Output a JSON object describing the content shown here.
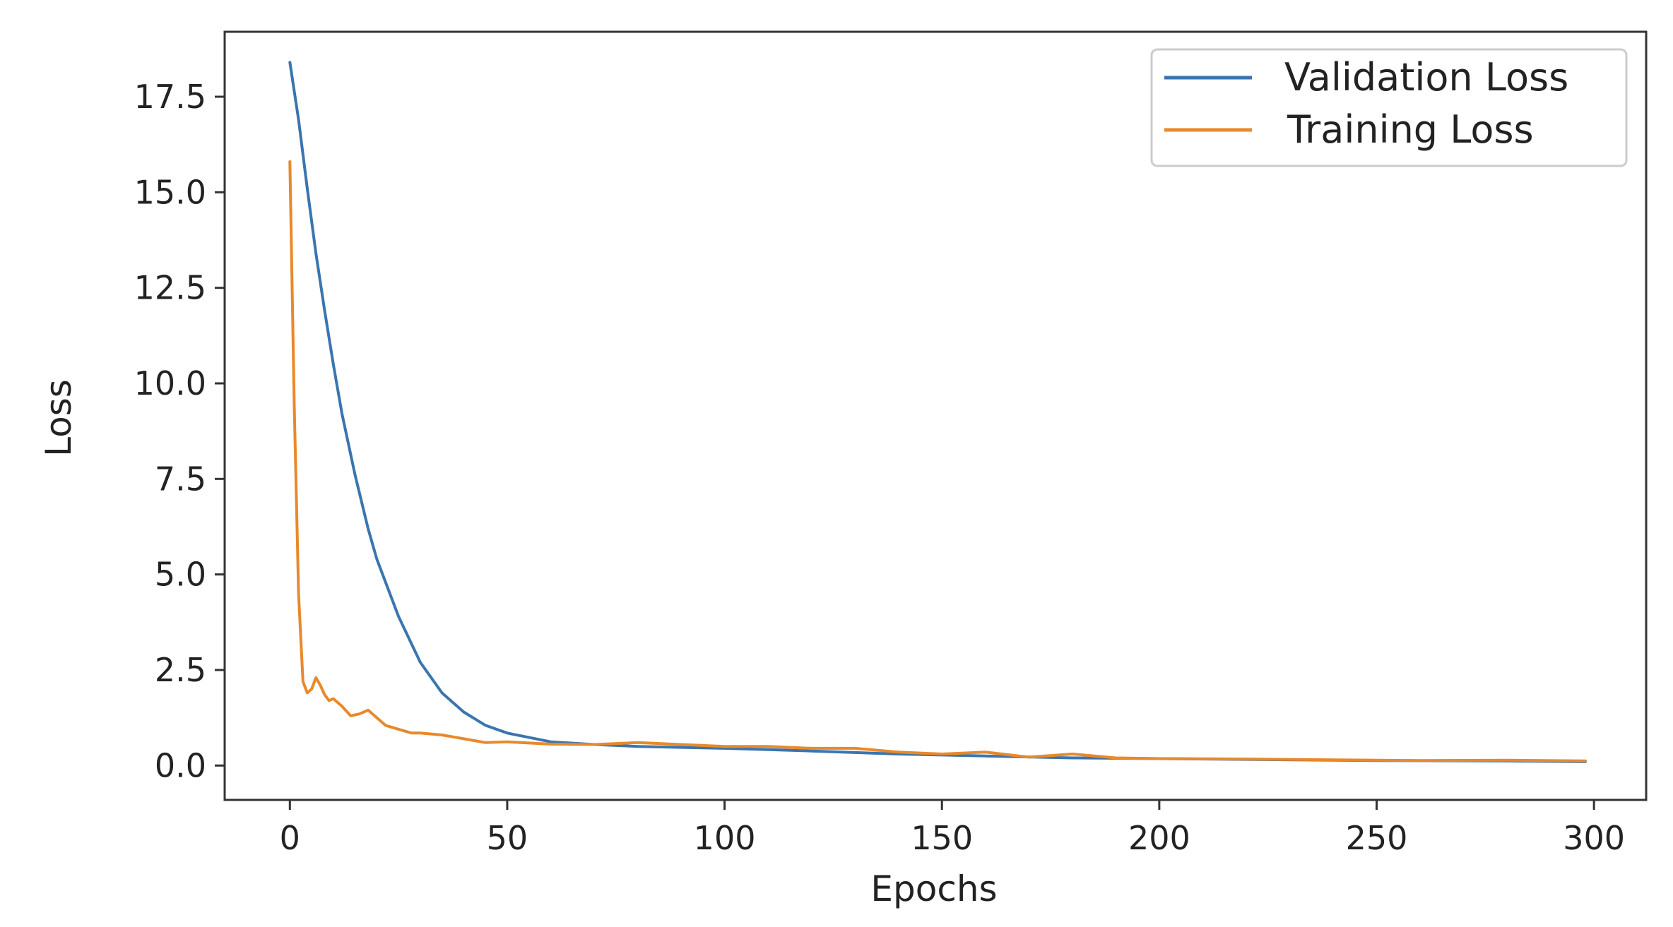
{
  "chart_data": {
    "type": "line",
    "title": "",
    "xlabel": "Epochs",
    "ylabel": "Loss",
    "xlim": [
      -15,
      312
    ],
    "ylim": [
      -0.9,
      19.2
    ],
    "xticks": [
      "0",
      "50",
      "100",
      "150",
      "200",
      "250",
      "300"
    ],
    "yticks": [
      "0.0",
      "2.5",
      "5.0",
      "7.5",
      "10.0",
      "12.5",
      "15.0",
      "17.5"
    ],
    "grid": false,
    "legend_position": "top-right",
    "series": [
      {
        "name": "Validation Loss",
        "color": "#3a75ae",
        "x": [
          0,
          2,
          4,
          6,
          8,
          10,
          12,
          15,
          18,
          20,
          25,
          30,
          35,
          40,
          45,
          50,
          60,
          70,
          80,
          100,
          120,
          140,
          160,
          180,
          200,
          220,
          250,
          280,
          298
        ],
        "y": [
          18.4,
          16.9,
          15.1,
          13.4,
          11.9,
          10.5,
          9.2,
          7.6,
          6.2,
          5.4,
          3.9,
          2.7,
          1.9,
          1.4,
          1.05,
          0.85,
          0.62,
          0.55,
          0.5,
          0.45,
          0.38,
          0.3,
          0.25,
          0.2,
          0.18,
          0.16,
          0.13,
          0.12,
          0.1
        ]
      },
      {
        "name": "Training Loss",
        "color": "#e8892b",
        "x": [
          0,
          1,
          2,
          3,
          4,
          5,
          6,
          7,
          8,
          9,
          10,
          12,
          14,
          16,
          18,
          20,
          22,
          25,
          28,
          30,
          35,
          40,
          45,
          50,
          60,
          70,
          80,
          90,
          100,
          110,
          120,
          130,
          140,
          150,
          160,
          170,
          180,
          190,
          200,
          220,
          240,
          260,
          280,
          298
        ],
        "y": [
          15.8,
          9.5,
          4.5,
          2.2,
          1.9,
          2.0,
          2.3,
          2.1,
          1.85,
          1.7,
          1.75,
          1.55,
          1.3,
          1.35,
          1.45,
          1.25,
          1.05,
          0.95,
          0.85,
          0.85,
          0.8,
          0.7,
          0.6,
          0.62,
          0.56,
          0.55,
          0.6,
          0.55,
          0.5,
          0.5,
          0.45,
          0.45,
          0.35,
          0.3,
          0.35,
          0.22,
          0.3,
          0.2,
          0.18,
          0.17,
          0.15,
          0.13,
          0.14,
          0.12
        ]
      }
    ]
  }
}
